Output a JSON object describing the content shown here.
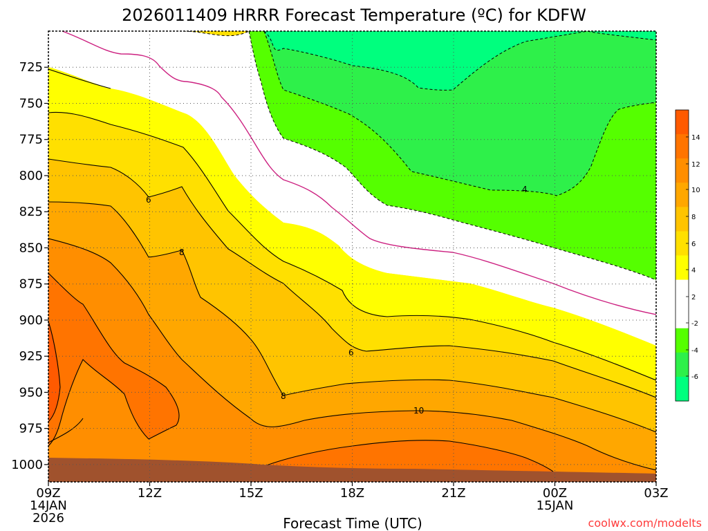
{
  "chart_data": {
    "type": "contour",
    "title": "2026011409 HRRR Forecast Temperature (ºC) for KDFW",
    "xlabel": "Forecast Time (UTC)",
    "ylabel": "",
    "credit": "coolwx.com/modelts",
    "y_axis": {
      "scale": "pressure (hPa)",
      "reversed": true,
      "range": [
        1012,
        700
      ],
      "ticks": [
        "725",
        "750",
        "775",
        "800",
        "825",
        "850",
        "875",
        "900",
        "925",
        "950",
        "975",
        "1000"
      ]
    },
    "x_axis": {
      "range_hours": [
        0,
        18
      ],
      "ticks": [
        {
          "label": "09Z",
          "sub": [
            "14JAN",
            "2026"
          ]
        },
        {
          "label": "12Z",
          "sub": []
        },
        {
          "label": "15Z",
          "sub": []
        },
        {
          "label": "18Z",
          "sub": []
        },
        {
          "label": "21Z",
          "sub": []
        },
        {
          "label": "00Z",
          "sub": [
            "15JAN"
          ]
        },
        {
          "label": "03Z",
          "sub": []
        }
      ]
    },
    "grid": "dotted",
    "contour_labels": [
      "6",
      "8",
      "6",
      "8",
      "10",
      "4"
    ],
    "colorbar": {
      "levels": [
        "14",
        "12",
        "10",
        "8",
        "6",
        "4",
        "2",
        "-2",
        "-4",
        "-6"
      ],
      "bands": [
        {
          "color": "#ff5a00"
        },
        {
          "color": "#ff7400"
        },
        {
          "color": "#ff8e00"
        },
        {
          "color": "#ffa700"
        },
        {
          "color": "#ffc400"
        },
        {
          "color": "#ffe000"
        },
        {
          "color": "#ffff00"
        },
        {
          "color": "#ffffff"
        },
        {
          "color": "#ffffff"
        },
        {
          "color": "#55ff00"
        },
        {
          "color": "#2ef04a"
        },
        {
          "color": "#00ff7e"
        }
      ]
    },
    "colors": {
      "ground": "#a0522d",
      "white_band": "#ffffff",
      "green_light": "#55ff00",
      "green_dark": "#00ff7e",
      "zero_line": "#cc2080"
    }
  }
}
